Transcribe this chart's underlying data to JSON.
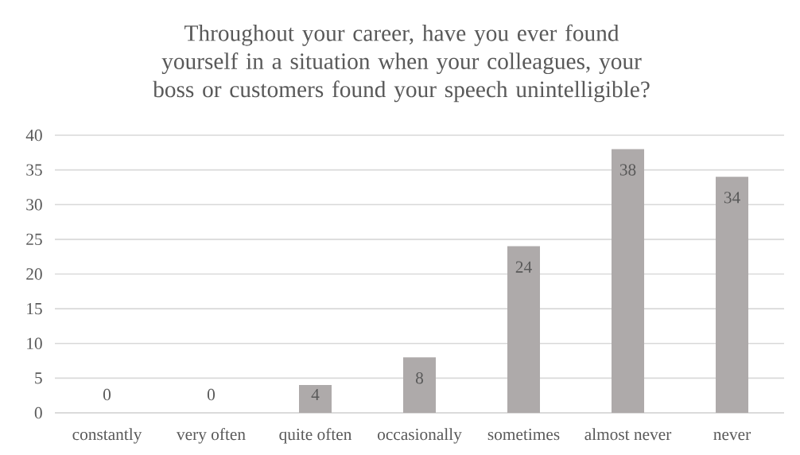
{
  "chart_data": {
    "type": "bar",
    "title": "Throughout your career, have you ever found yourself in a situation when your colleagues, your boss or customers found your speech unintelligible?",
    "categories": [
      "constantly",
      "very often",
      "quite often",
      "occasionally",
      "sometimes",
      "almost never",
      "never"
    ],
    "values": [
      0,
      0,
      4,
      8,
      24,
      38,
      34
    ],
    "color": "#aeaaaa",
    "ylim": [
      0,
      40
    ],
    "yticks": [
      0,
      5,
      10,
      15,
      20,
      25,
      30,
      35,
      40
    ],
    "grid": "y",
    "data_labels": true
  }
}
